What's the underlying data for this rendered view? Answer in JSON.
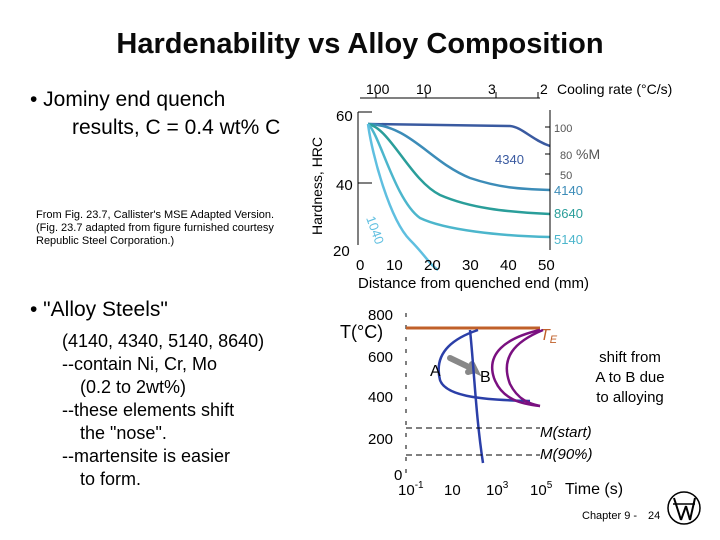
{
  "title": "Hardenability vs Alloy Composition",
  "left": {
    "bullet1_line1": "• Jominy end quench",
    "bullet1_line2": "results, C = 0.4 wt% C",
    "source_line1": "From Fig. 23.7, Callister's MSE Adapted Version.",
    "source_line2": "(Fig. 23.7 adapted from figure furnished courtesy",
    "source_line3": "Republic Steel Corporation.)",
    "bullet2": "• \"Alloy Steels\"",
    "list_line1": "(4140, 4340, 5140, 8640)",
    "list_line2": "--contain Ni, Cr, Mo",
    "list_line3": "(0.2 to 2wt%)",
    "list_line4": "--these elements shift",
    "list_line5": "the \"nose\".",
    "list_line6": "--martensite is easier",
    "list_line7": "to form."
  },
  "jominy": {
    "ylabel": "Hardness, HRC",
    "yticks": [
      "60",
      "40",
      "20"
    ],
    "xticks": [
      "0",
      "10",
      "20",
      "30",
      "40",
      "50"
    ],
    "xlabel": "Distance from quenched end (mm)",
    "cooling_ticks": [
      "100",
      "10",
      "3",
      "2"
    ],
    "cooling_label": "Cooling rate (°C/s)",
    "pctM_ticks": [
      "100",
      "80",
      "50"
    ],
    "pctM_label": "%M",
    "curve_labels": {
      "c4340": "4340",
      "c4140": "4140",
      "c8640": "8640",
      "c5140": "5140",
      "c1040": "1040"
    }
  },
  "ttt": {
    "ylabel": "T(°C)",
    "yticks": [
      "800",
      "600",
      "400",
      "200",
      "0"
    ],
    "xticks_base": [
      "10",
      "10",
      "10",
      "10"
    ],
    "xticks_exp": [
      "-1",
      "",
      "3",
      "5"
    ],
    "xlabel": "Time (s)",
    "te_label": "T",
    "te_sub": "E",
    "label_a": "A",
    "label_b": "B",
    "shift_text_1": "shift from",
    "shift_text_2": "A to B due",
    "shift_text_3": "to alloying",
    "ms_start": "M(start)",
    "m90": "M(90%)"
  },
  "footer": {
    "chapter": "Chapter 9 -",
    "page": "24"
  },
  "colors": {
    "c4340": "#3a5aa0",
    "c4140": "#3c8cb8",
    "c8640": "#2a9e9a",
    "c5140": "#4cb6cc",
    "c1040": "#5fbfe0",
    "te_line": "#c0602a",
    "curve_a": "#2b3fa8",
    "curve_b": "#7a1080",
    "arrow": "#888888"
  }
}
